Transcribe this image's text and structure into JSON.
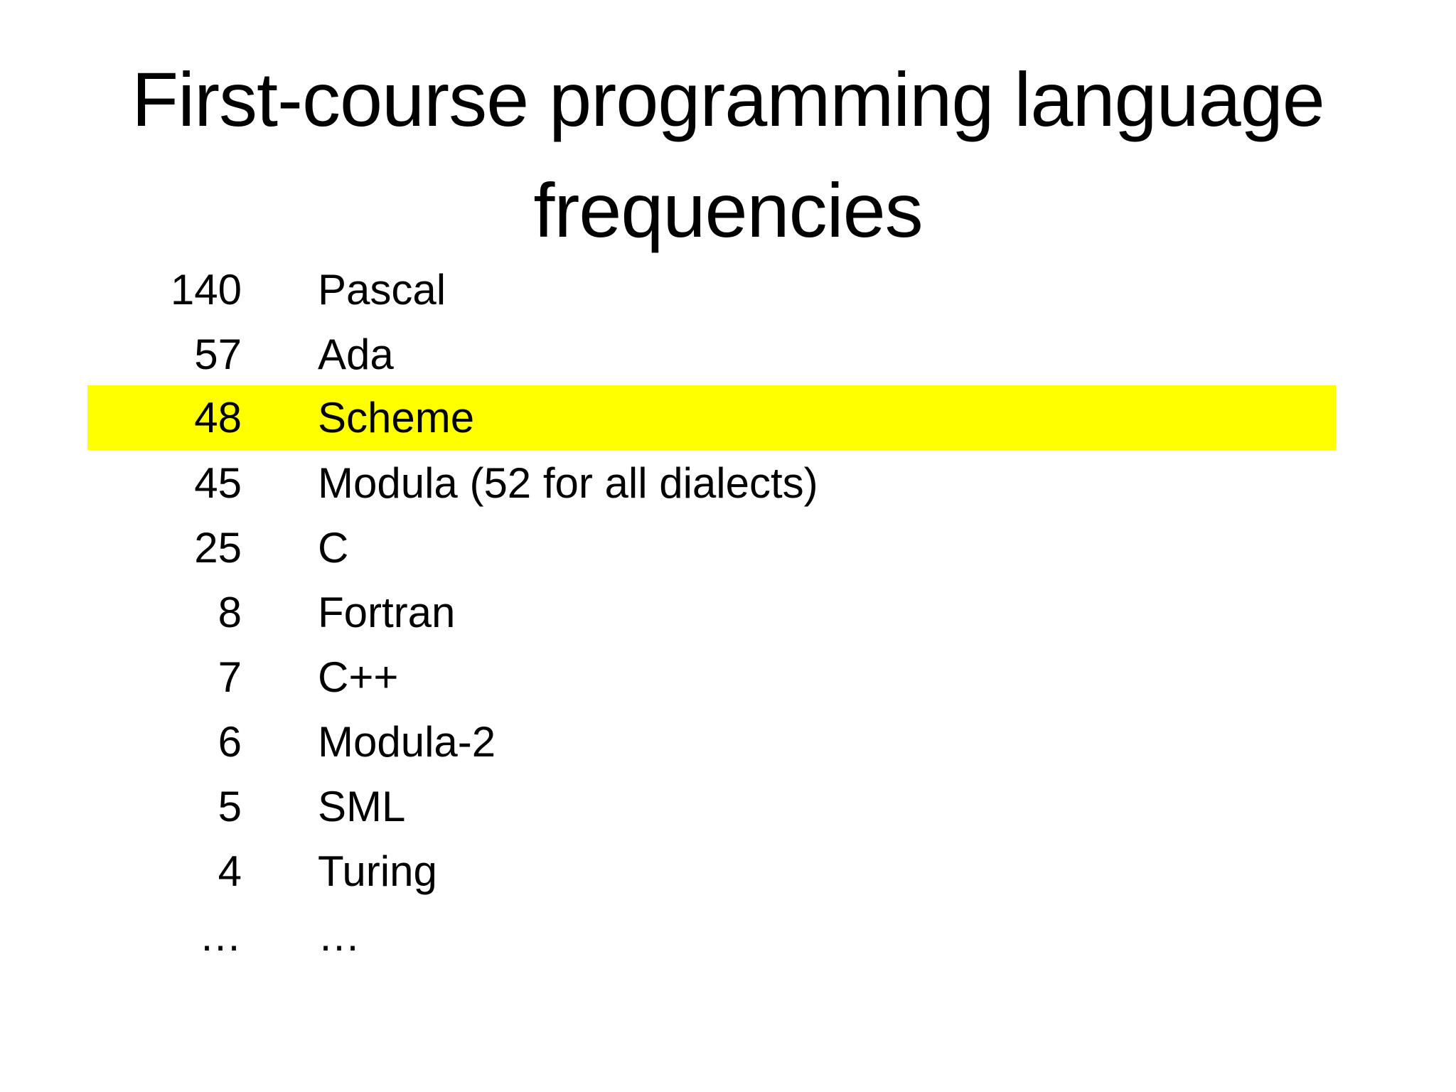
{
  "slide": {
    "title": "First-course programming language frequencies"
  },
  "table": {
    "rows": [
      {
        "count": "140",
        "language": "Pascal",
        "highlighted": false
      },
      {
        "count": "57",
        "language": "Ada",
        "highlighted": false
      },
      {
        "count": "48",
        "language": "Scheme",
        "highlighted": true
      },
      {
        "count": "45",
        "language": "Modula (52 for all dialects)",
        "highlighted": false
      },
      {
        "count": "25",
        "language": "C",
        "highlighted": false
      },
      {
        "count": "8",
        "language": "Fortran",
        "highlighted": false
      },
      {
        "count": "7",
        "language": "C++",
        "highlighted": false
      },
      {
        "count": "6",
        "language": "Modula-2",
        "highlighted": false
      },
      {
        "count": "5",
        "language": "SML",
        "highlighted": false
      },
      {
        "count": "4",
        "language": "Turing",
        "highlighted": false
      },
      {
        "count": "…",
        "language": "…",
        "highlighted": false
      }
    ]
  },
  "colors": {
    "highlight": "#ffff00",
    "text": "#000000",
    "background": "#ffffff"
  }
}
